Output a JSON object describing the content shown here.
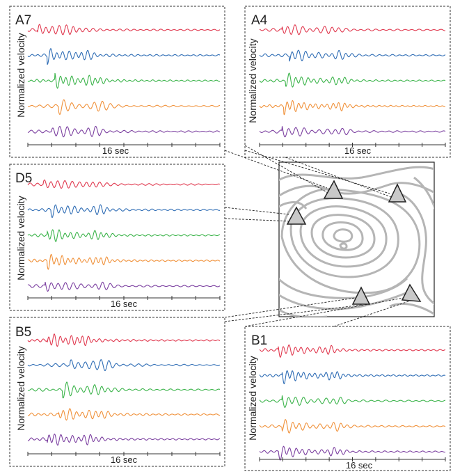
{
  "figure": {
    "trace_colors": [
      "#e0394f",
      "#2f6db5",
      "#3cb44b",
      "#f0913a",
      "#7b3fa0"
    ],
    "panels": [
      {
        "id": "A7",
        "label": "A7",
        "ylabel": "Normalized velocity",
        "xlabel": "16 sec",
        "onsets": [
          0.05,
          0.1,
          0.14,
          0.16,
          0.12
        ],
        "seed": 11
      },
      {
        "id": "A4",
        "label": "A4",
        "ylabel": "Normalized velocity",
        "xlabel": "16 sec",
        "onsets": [
          0.12,
          0.16,
          0.14,
          0.13,
          0.12
        ],
        "seed": 23
      },
      {
        "id": "D5",
        "label": "D5",
        "ylabel": "Normalized velocity",
        "xlabel": "16 sec",
        "onsets": [
          0.08,
          0.12,
          0.1,
          0.1,
          0.09
        ],
        "seed": 37
      },
      {
        "id": "B5",
        "label": "B5",
        "ylabel": "Normalized velocity",
        "xlabel": "16 sec",
        "onsets": [
          0.1,
          0.22,
          0.18,
          0.16,
          0.1
        ],
        "seed": 41
      },
      {
        "id": "B1",
        "label": "B1",
        "ylabel": "Normalized velocity",
        "xlabel": "16 sec",
        "onsets": [
          0.1,
          0.12,
          0.12,
          0.12,
          0.1
        ],
        "seed": 53
      }
    ],
    "map": {
      "stations": [
        "A7",
        "A4",
        "D5",
        "B5",
        "B1"
      ]
    }
  }
}
